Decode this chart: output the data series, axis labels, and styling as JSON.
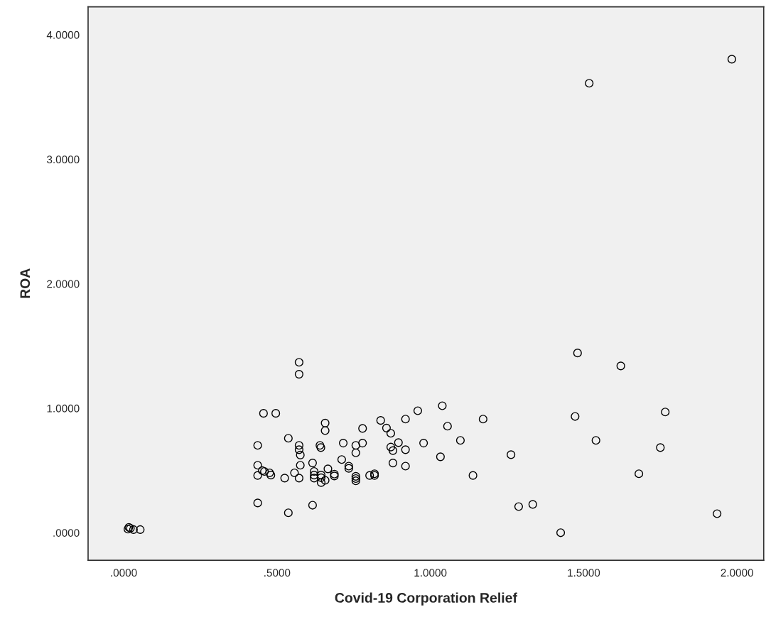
{
  "chart_data": {
    "type": "scatter",
    "xlabel": "Covid-19 Corporation Relief",
    "ylabel": "ROA",
    "xlim": [
      -0.116,
      2.087
    ],
    "ylim": [
      -0.221,
      4.225
    ],
    "xticks": [
      {
        "value": 0,
        "label": ".0000"
      },
      {
        "value": 0.5,
        "label": ".5000"
      },
      {
        "value": 1,
        "label": "1.0000"
      },
      {
        "value": 1.5,
        "label": "1.5000"
      },
      {
        "value": 2,
        "label": "2.0000"
      }
    ],
    "yticks": [
      {
        "value": 0,
        "label": ".0000"
      },
      {
        "value": 1,
        "label": "1.0000"
      },
      {
        "value": 2,
        "label": "2.0000"
      },
      {
        "value": 3,
        "label": "3.0000"
      },
      {
        "value": 4,
        "label": "4.0000"
      }
    ],
    "marker": "circle",
    "grid": false,
    "series": [
      {
        "color": "#000000",
        "x": [
          1.983,
          1.518,
          1.48,
          1.621,
          1.766,
          1.472,
          1.54,
          1.75,
          1.68,
          1.935,
          1.425,
          1.334,
          1.288,
          1.263,
          1.172,
          1.139,
          1.098,
          1.056,
          1.039,
          1.033,
          0.978,
          0.959,
          0.919,
          0.919,
          0.919,
          0.896,
          0.878,
          0.878,
          0.871,
          0.871,
          0.857,
          0.838,
          0.818,
          0.818,
          0.802,
          0.779,
          0.779,
          0.757,
          0.757,
          0.757,
          0.757,
          0.757,
          0.734,
          0.734,
          0.716,
          0.711,
          0.687,
          0.687,
          0.666,
          0.657,
          0.657,
          0.657,
          0.644,
          0.644,
          0.644,
          0.64,
          0.643,
          0.621,
          0.621,
          0.621,
          0.616,
          0.616,
          0.576,
          0.576,
          0.572,
          0.572,
          0.572,
          0.572,
          0.572,
          0.557,
          0.537,
          0.537,
          0.525,
          0.496,
          0.456,
          0.48,
          0.476,
          0.459,
          0.452,
          0.437,
          0.437,
          0.437,
          0.437,
          0.017,
          0.022,
          0.014,
          0.032,
          0.054
        ],
        "values": [
          3.804,
          3.611,
          1.444,
          1.34,
          0.97,
          0.934,
          0.742,
          0.684,
          0.474,
          0.153,
          0.0,
          0.228,
          0.21,
          0.627,
          0.913,
          0.46,
          0.742,
          0.856,
          1.02,
          0.61,
          0.72,
          0.98,
          0.913,
          0.667,
          0.535,
          0.724,
          0.66,
          0.56,
          0.688,
          0.799,
          0.841,
          0.902,
          0.474,
          0.46,
          0.46,
          0.838,
          0.72,
          0.702,
          0.642,
          0.453,
          0.435,
          0.417,
          0.535,
          0.517,
          0.72,
          0.588,
          0.471,
          0.456,
          0.513,
          0.881,
          0.82,
          0.421,
          0.463,
          0.442,
          0.403,
          0.702,
          0.684,
          0.492,
          0.463,
          0.439,
          0.56,
          0.221,
          0.542,
          0.624,
          0.667,
          0.702,
          0.439,
          1.369,
          1.273,
          0.481,
          0.759,
          0.16,
          0.439,
          0.959,
          0.959,
          0.463,
          0.481,
          0.492,
          0.499,
          0.702,
          0.542,
          0.46,
          0.239,
          0.043,
          0.036,
          0.029,
          0.025,
          0.025
        ]
      }
    ]
  }
}
